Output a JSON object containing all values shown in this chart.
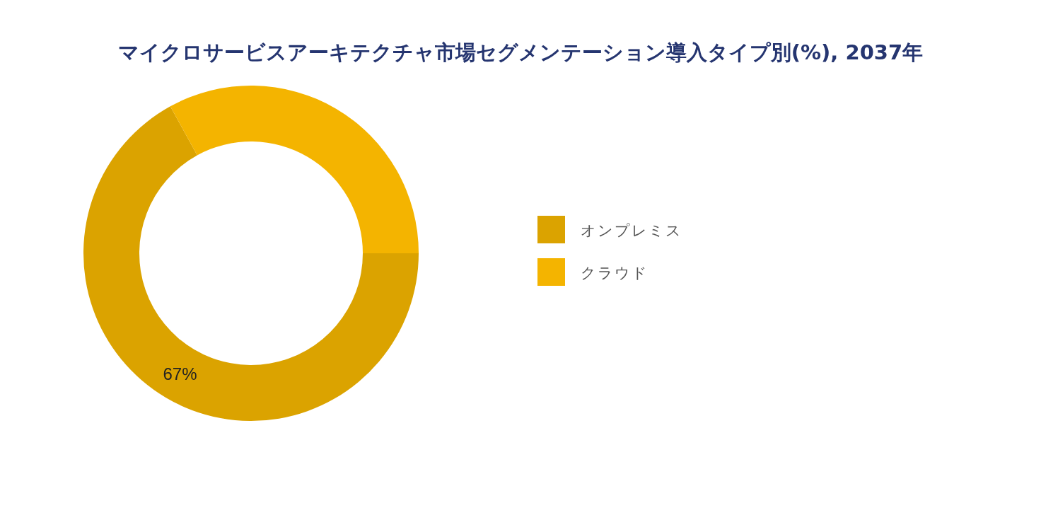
{
  "chart_data": {
    "type": "donut",
    "title": "マイクロサービスアーキテクチャ市場セグメンテーション導入タイプ別(%), 2037年",
    "categories": [
      "オンプレミス",
      "クラウド"
    ],
    "values": [
      67,
      33
    ],
    "colors": [
      "#dba300",
      "#f4b400"
    ],
    "value_labels": [
      "67%",
      null
    ],
    "legend": "right"
  }
}
